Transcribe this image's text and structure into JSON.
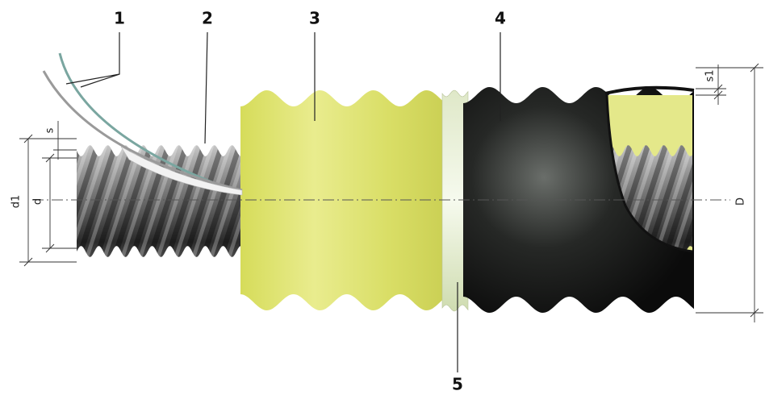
{
  "callouts": [
    "1",
    "2",
    "3",
    "4",
    "5"
  ],
  "dimensions": {
    "s": "s",
    "d1": "d1",
    "d": "d",
    "s1": "s1",
    "D": "D"
  }
}
